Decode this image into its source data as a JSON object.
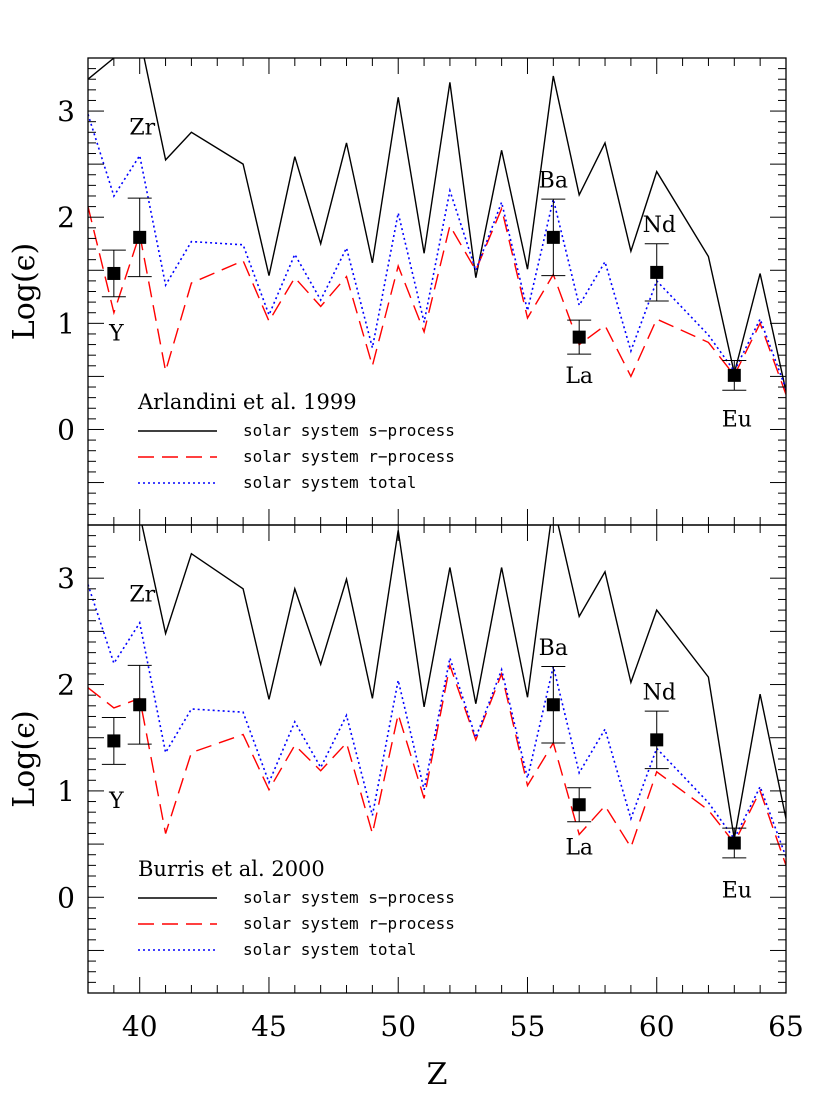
{
  "chart_data": {
    "type": "line",
    "xlabel": "Z",
    "ylabel": "Log(ϵ)",
    "xlim": [
      38,
      65
    ],
    "ylim": [
      -0.9,
      3.5
    ],
    "x_ticks": [
      40,
      45,
      50,
      55,
      60,
      65
    ],
    "x_tick_labels": [
      "40",
      "45",
      "50",
      "55",
      "60",
      "65"
    ],
    "y_ticks": [
      0,
      1,
      2,
      3
    ],
    "y_tick_labels": [
      "0",
      "1",
      "2",
      "3"
    ],
    "legend_labels": [
      "solar system s−process",
      "solar system r−process",
      "solar system total"
    ],
    "colors": {
      "s": "#000000",
      "r": "#ff0000",
      "total": "#0000ff",
      "obs": "#000000"
    },
    "panels": [
      {
        "legend_title": "Arlandini et al. 1999",
        "series": [
          {
            "key": "s",
            "style": "solid",
            "x": [
              38,
              39,
              40,
              41,
              42,
              44,
              45,
              46,
              47,
              48,
              49,
              50,
              51,
              52,
              53,
              54,
              55,
              56,
              57,
              58,
              59,
              60,
              62,
              63,
              64,
              65
            ],
            "y": [
              3.3,
              3.5,
              3.7,
              2.54,
              2.8,
              2.5,
              1.45,
              2.57,
              1.75,
              2.7,
              1.57,
              3.13,
              1.66,
              3.27,
              1.43,
              2.63,
              1.51,
              3.33,
              2.21,
              2.7,
              1.68,
              2.43,
              1.63,
              0.53,
              1.47,
              0.36
            ]
          },
          {
            "key": "r",
            "style": "dashed",
            "x": [
              38,
              39,
              40,
              41,
              42,
              44,
              45,
              46,
              47,
              48,
              49,
              50,
              51,
              52,
              53,
              54,
              55,
              56,
              57,
              58,
              59,
              60,
              62,
              63,
              64,
              65
            ],
            "y": [
              2.1,
              1.1,
              1.84,
              0.55,
              1.38,
              1.59,
              1.02,
              1.43,
              1.16,
              1.44,
              0.6,
              1.54,
              0.92,
              1.92,
              1.5,
              2.08,
              1.05,
              1.46,
              0.8,
              0.98,
              0.5,
              1.04,
              0.82,
              0.51,
              1.0,
              0.33
            ]
          },
          {
            "key": "total",
            "style": "dotted",
            "x": [
              38,
              39,
              40,
              41,
              42,
              44,
              45,
              46,
              47,
              48,
              49,
              50,
              51,
              52,
              53,
              54,
              55,
              56,
              57,
              58,
              59,
              60,
              62,
              63,
              64,
              65
            ],
            "y": [
              2.97,
              2.2,
              2.58,
              1.36,
              1.77,
              1.74,
              1.08,
              1.65,
              1.22,
              1.71,
              0.77,
              2.04,
              1.01,
              2.25,
              1.5,
              2.14,
              1.12,
              2.17,
              1.17,
              1.58,
              0.74,
              1.4,
              0.89,
              0.55,
              1.04,
              0.38
            ]
          }
        ],
        "observed": [
          {
            "x": 39,
            "y": 1.47,
            "err_low": 1.25,
            "err_high": 1.69
          },
          {
            "x": 40,
            "y": 1.81,
            "err_low": 1.44,
            "err_high": 2.18
          },
          {
            "x": 56,
            "y": 1.81,
            "err_low": 1.45,
            "err_high": 2.17
          },
          {
            "x": 57,
            "y": 0.87,
            "err_low": 0.71,
            "err_high": 1.03
          },
          {
            "x": 60,
            "y": 1.48,
            "err_low": 1.21,
            "err_high": 1.75
          },
          {
            "x": 63,
            "y": 0.51,
            "err_low": 0.37,
            "err_high": 0.65
          }
        ],
        "element_labels": [
          {
            "text": "Y",
            "x": 39.1,
            "y": 0.84
          },
          {
            "text": "Zr",
            "x": 40.1,
            "y": 2.78
          },
          {
            "text": "Ba",
            "x": 56.0,
            "y": 2.28
          },
          {
            "text": "La",
            "x": 57.0,
            "y": 0.44
          },
          {
            "text": "Nd",
            "x": 60.1,
            "y": 1.86
          },
          {
            "text": "Eu",
            "x": 63.1,
            "y": 0.03
          }
        ]
      },
      {
        "legend_title": "Burris et al. 2000",
        "series": [
          {
            "key": "s",
            "style": "solid",
            "x": [
              38,
              39,
              40,
              41,
              42,
              44,
              45,
              46,
              47,
              48,
              49,
              50,
              51,
              52,
              53,
              54,
              55,
              56,
              57,
              58,
              59,
              60,
              62,
              63,
              64,
              65
            ],
            "y": [
              3.6,
              3.6,
              3.6,
              2.48,
              3.23,
              2.9,
              1.86,
              2.9,
              2.19,
              2.99,
              1.87,
              3.45,
              1.79,
              3.1,
              1.82,
              3.1,
              1.88,
              3.7,
              2.64,
              3.06,
              2.02,
              2.7,
              2.07,
              0.55,
              1.91,
              0.74
            ]
          },
          {
            "key": "r",
            "style": "dashed",
            "x": [
              38,
              39,
              40,
              41,
              42,
              44,
              45,
              46,
              47,
              48,
              49,
              50,
              51,
              52,
              53,
              54,
              55,
              56,
              57,
              58,
              59,
              60,
              62,
              63,
              64,
              65
            ],
            "y": [
              1.97,
              1.78,
              1.87,
              0.6,
              1.36,
              1.53,
              1.01,
              1.43,
              1.19,
              1.45,
              0.6,
              1.72,
              0.93,
              2.18,
              1.48,
              2.1,
              1.05,
              1.45,
              0.59,
              0.86,
              0.47,
              1.18,
              0.82,
              0.51,
              1.0,
              0.3
            ]
          },
          {
            "key": "total",
            "style": "dotted",
            "x": [
              38,
              39,
              40,
              41,
              42,
              44,
              45,
              46,
              47,
              48,
              49,
              50,
              51,
              52,
              53,
              54,
              55,
              56,
              57,
              58,
              59,
              60,
              62,
              63,
              64,
              65
            ],
            "y": [
              2.94,
              2.2,
              2.58,
              1.36,
              1.77,
              1.74,
              1.08,
              1.65,
              1.22,
              1.71,
              0.77,
              2.04,
              1.01,
              2.25,
              1.5,
              2.14,
              1.12,
              2.17,
              1.17,
              1.58,
              0.74,
              1.4,
              0.89,
              0.55,
              1.04,
              0.38
            ]
          }
        ],
        "observed": [
          {
            "x": 39,
            "y": 1.47,
            "err_low": 1.25,
            "err_high": 1.69
          },
          {
            "x": 40,
            "y": 1.81,
            "err_low": 1.44,
            "err_high": 2.18
          },
          {
            "x": 56,
            "y": 1.81,
            "err_low": 1.45,
            "err_high": 2.17
          },
          {
            "x": 57,
            "y": 0.87,
            "err_low": 0.71,
            "err_high": 1.03
          },
          {
            "x": 60,
            "y": 1.48,
            "err_low": 1.21,
            "err_high": 1.75
          },
          {
            "x": 63,
            "y": 0.51,
            "err_low": 0.37,
            "err_high": 0.65
          }
        ],
        "element_labels": [
          {
            "text": "Y",
            "x": 39.1,
            "y": 0.84
          },
          {
            "text": "Zr",
            "x": 40.1,
            "y": 2.78
          },
          {
            "text": "Ba",
            "x": 56.0,
            "y": 2.28
          },
          {
            "text": "La",
            "x": 57.0,
            "y": 0.4
          },
          {
            "text": "Nd",
            "x": 60.1,
            "y": 1.86
          },
          {
            "text": "Eu",
            "x": 63.1,
            "y": 0.0
          }
        ]
      }
    ]
  }
}
